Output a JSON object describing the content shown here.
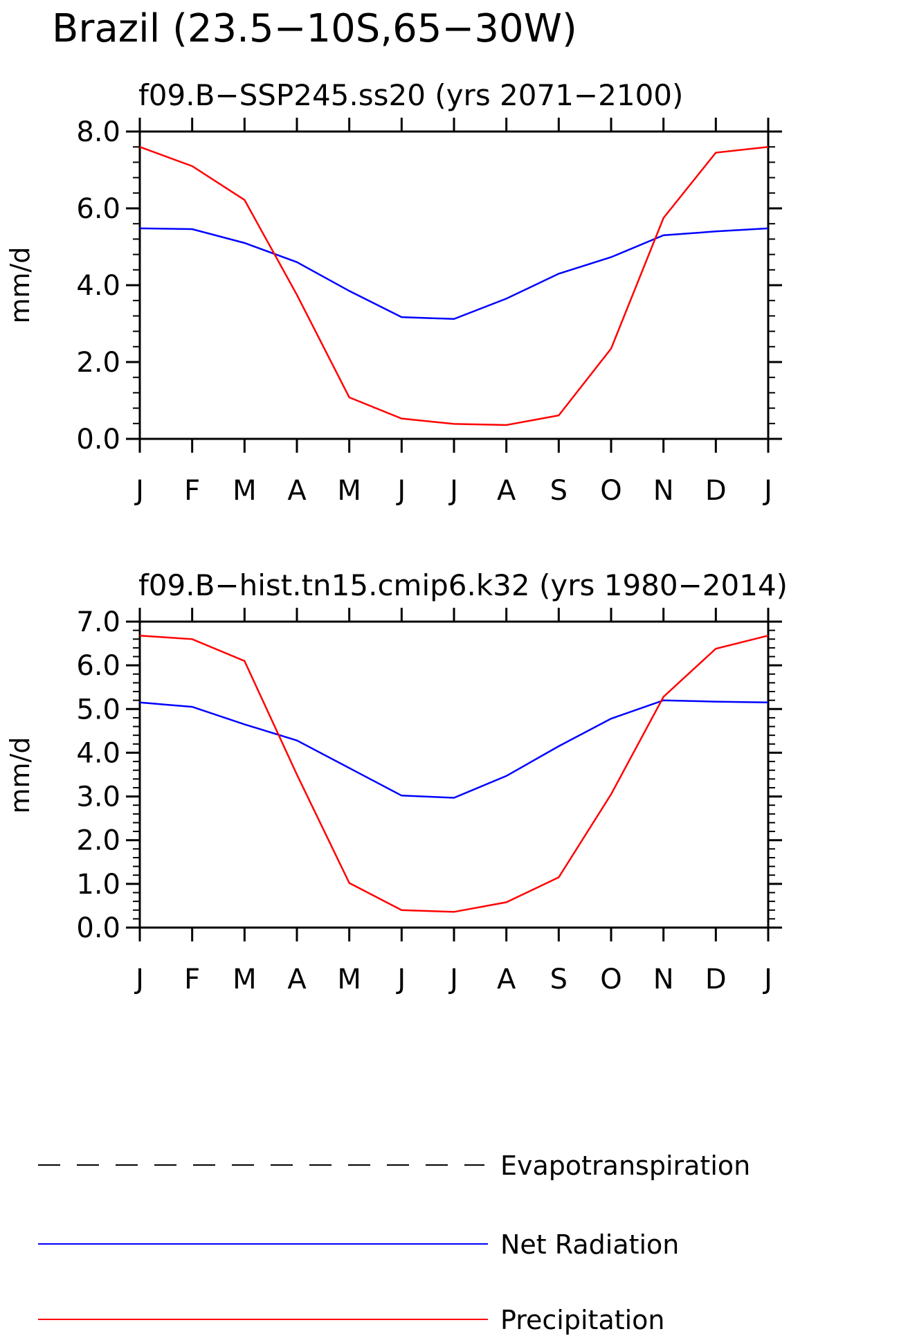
{
  "figure": {
    "title": "Brazil (23.5−10S,65−30W)"
  },
  "chart_data": [
    {
      "type": "line",
      "title": "f09.B−SSP245.ss20 (yrs 2071−2100)",
      "xlabel": "",
      "ylabel": "mm/d",
      "categories": [
        "J",
        "F",
        "M",
        "A",
        "M",
        "J",
        "J",
        "A",
        "S",
        "O",
        "N",
        "D",
        "J"
      ],
      "ylim": [
        0,
        8
      ],
      "yticks": [
        0,
        2,
        4,
        6,
        8
      ],
      "ytick_labels": [
        "0.0",
        "2.0",
        "4.0",
        "6.0",
        "8.0"
      ],
      "grid": false,
      "series": [
        {
          "key": "net_radiation",
          "color": "#0000ff",
          "values": [
            5.48,
            5.46,
            5.1,
            4.6,
            3.85,
            3.17,
            3.12,
            3.65,
            4.3,
            4.73,
            5.3,
            5.4,
            5.48
          ]
        },
        {
          "key": "precipitation",
          "color": "#ff0000",
          "values": [
            7.6,
            7.1,
            6.22,
            3.75,
            1.08,
            0.53,
            0.39,
            0.36,
            0.61,
            2.35,
            5.75,
            7.45,
            7.6
          ]
        }
      ]
    },
    {
      "type": "line",
      "title": "f09.B−hist.tn15.cmip6.k32 (yrs 1980−2014)",
      "xlabel": "",
      "ylabel": "mm/d",
      "categories": [
        "J",
        "F",
        "M",
        "A",
        "M",
        "J",
        "J",
        "A",
        "S",
        "O",
        "N",
        "D",
        "J"
      ],
      "ylim": [
        0,
        7
      ],
      "yticks": [
        0,
        1,
        2,
        3,
        4,
        5,
        6,
        7
      ],
      "ytick_labels": [
        "0.0",
        "1.0",
        "2.0",
        "3.0",
        "4.0",
        "5.0",
        "6.0",
        "7.0"
      ],
      "grid": false,
      "series": [
        {
          "key": "net_radiation",
          "color": "#0000ff",
          "values": [
            5.15,
            5.05,
            4.65,
            4.28,
            3.65,
            3.02,
            2.97,
            3.47,
            4.15,
            4.78,
            5.2,
            5.17,
            5.15
          ]
        },
        {
          "key": "precipitation",
          "color": "#ff0000",
          "values": [
            6.68,
            6.6,
            6.1,
            3.5,
            1.02,
            0.4,
            0.36,
            0.58,
            1.15,
            3.05,
            5.28,
            6.38,
            6.68
          ]
        }
      ]
    }
  ],
  "legend": {
    "placement": "bottom",
    "items": [
      {
        "label": "Evapotranspiration",
        "color": "#000000",
        "style": "dashed"
      },
      {
        "label": "Net Radiation",
        "color": "#0000ff",
        "style": "solid"
      },
      {
        "label": "Precipitation",
        "color": "#ff0000",
        "style": "solid"
      }
    ]
  }
}
